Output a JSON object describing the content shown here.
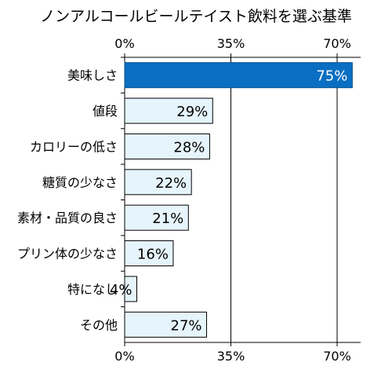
{
  "chart_data": {
    "type": "bar",
    "orientation": "horizontal",
    "title": "ノンアルコールビールテイスト飲料を選ぶ基準",
    "categories": [
      "美味しさ",
      "値段",
      "カロリーの低さ",
      "糖質の少なさ",
      "素材・品質の良さ",
      "プリン体の少なさ",
      "特になし",
      "その他"
    ],
    "values": [
      75,
      29,
      28,
      22,
      21,
      16,
      4,
      27
    ],
    "data_labels": [
      "75%",
      "29%",
      "28%",
      "22%",
      "21%",
      "16%",
      "4%",
      "27%"
    ],
    "xlim": [
      0,
      70
    ],
    "x_ticks": [
      0,
      35,
      70
    ],
    "x_tick_labels": [
      "0%",
      "35%",
      "70%"
    ],
    "tick_positions": [
      "top",
      "bottom"
    ],
    "grid": true,
    "colors": {
      "highlight_fill": "#0a6fc2",
      "highlight_stroke": "#0a4f8a",
      "bar_fill": "#e6f4fc",
      "bar_stroke": "#000000",
      "highlight_label": "#ffffff",
      "grid": "#000000"
    }
  }
}
